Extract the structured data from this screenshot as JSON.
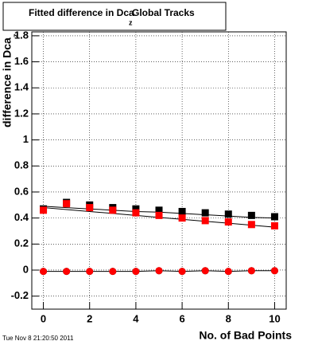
{
  "chart_data": {
    "type": "scatter",
    "title": "Fitted difference in Dca",
    "title_subscript": "z",
    "title_suffix": "Global Tracks",
    "x_label": "No. of Bad Points",
    "y_label": "difference in Dca",
    "y_label_subscript": "z",
    "timestamp": "Tue Nov  8 21:20:50 2011",
    "x": [
      0,
      1,
      2,
      3,
      4,
      5,
      6,
      7,
      8,
      9,
      10
    ],
    "xlim": [
      -0.5,
      10.5
    ],
    "xticks": [
      0,
      2,
      4,
      6,
      8,
      10
    ],
    "ylim": [
      -0.3,
      1.83
    ],
    "yticks": [
      -0.2,
      0,
      0.2,
      0.4,
      0.6,
      0.8,
      1,
      1.2,
      1.4,
      1.6,
      1.8
    ],
    "grid": true,
    "series": [
      {
        "color": "#000000",
        "marker": "line",
        "values": [
          0.49,
          0.48,
          0.47,
          0.46,
          0.45,
          0.445,
          0.435,
          0.425,
          0.415,
          0.405,
          0.4
        ]
      },
      {
        "color": "#000000",
        "marker": "line",
        "values": [
          0.48,
          0.465,
          0.45,
          0.435,
          0.42,
          0.405,
          0.39,
          0.375,
          0.36,
          0.345,
          0.33
        ]
      },
      {
        "color": "#000000",
        "marker": "square",
        "values": [
          0.47,
          0.52,
          0.5,
          0.48,
          0.47,
          0.46,
          0.45,
          0.44,
          0.43,
          0.42,
          0.41
        ]
      },
      {
        "color": "#ff0000",
        "marker": "square",
        "values": [
          0.46,
          0.51,
          0.48,
          0.46,
          0.44,
          0.42,
          0.4,
          0.38,
          0.37,
          0.35,
          0.34
        ]
      },
      {
        "color": "#000000",
        "marker": "circle",
        "line": true,
        "values": [
          -0.01,
          -0.01,
          -0.01,
          -0.01,
          -0.01,
          -0.005,
          -0.01,
          -0.005,
          -0.01,
          -0.005,
          -0.005
        ]
      },
      {
        "color": "#ff0000",
        "marker": "circle",
        "values": [
          -0.01,
          -0.01,
          -0.01,
          -0.01,
          -0.01,
          -0.005,
          -0.01,
          -0.005,
          -0.01,
          -0.005,
          -0.005
        ]
      }
    ]
  }
}
